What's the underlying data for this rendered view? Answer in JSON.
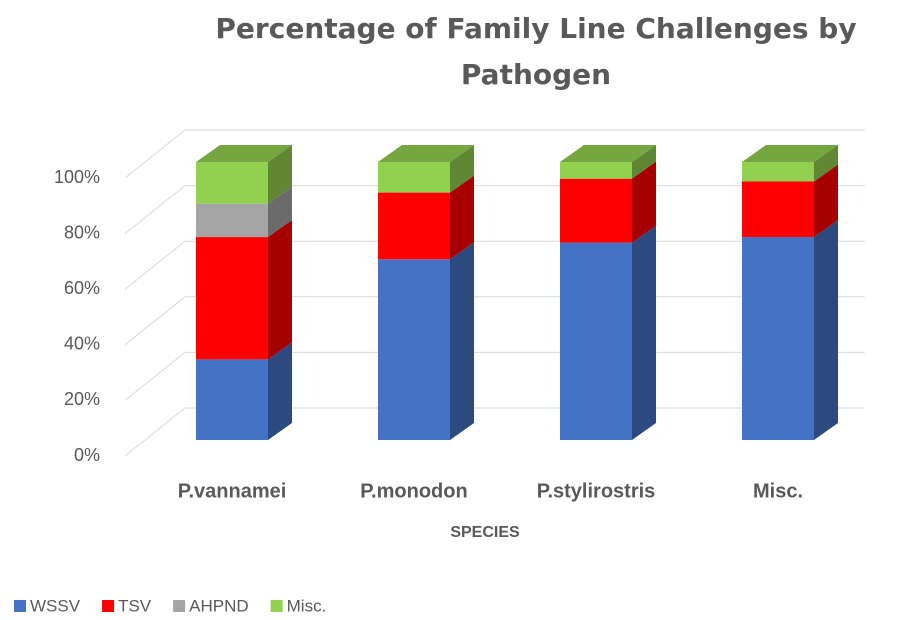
{
  "chart_data": {
    "type": "bar3d_stacked",
    "title": "Percentage of Family Line Challenges by Pathogen",
    "x_label": "SPECIES",
    "categories": [
      "P.vannamei",
      "P.monodon",
      "P.stylirostris",
      "Misc."
    ],
    "series": [
      {
        "name": "WSSV",
        "color": "#4472c4",
        "values": [
          29,
          65,
          71,
          73
        ]
      },
      {
        "name": "TSV",
        "color": "#ff0000",
        "values": [
          44,
          24,
          23,
          20
        ]
      },
      {
        "name": "AHPND",
        "color": "#a5a5a5",
        "values": [
          12,
          0,
          0,
          0
        ]
      },
      {
        "name": "Misc.",
        "color": "#92d050",
        "values": [
          15,
          11,
          6,
          7
        ]
      }
    ],
    "ylim": [
      0,
      100
    ],
    "yticks": [
      {
        "value": 0,
        "label": "0%"
      },
      {
        "value": 20,
        "label": "20%"
      },
      {
        "value": 40,
        "label": "40%"
      },
      {
        "value": 60,
        "label": "60%"
      },
      {
        "value": 80,
        "label": "80%"
      },
      {
        "value": 100,
        "label": "100%"
      }
    ],
    "grid": true,
    "legend": "bottom-left"
  }
}
